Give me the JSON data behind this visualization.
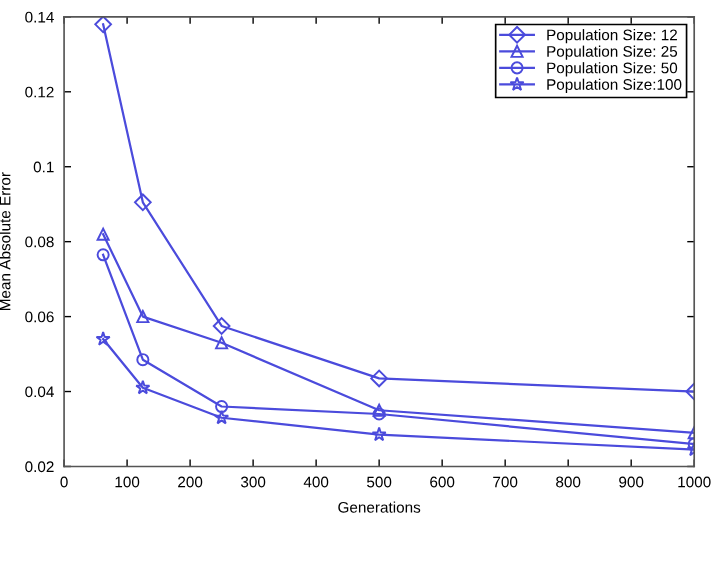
{
  "chart_data": {
    "type": "line",
    "xlabel": "Generations",
    "ylabel": "Mean Absolute Error",
    "xlim": [
      0,
      1000
    ],
    "xticks": [
      0,
      100,
      200,
      300,
      400,
      500,
      600,
      700,
      800,
      900,
      1000
    ],
    "ylim": [
      0.02,
      0.14
    ],
    "yticks": [
      0.02,
      0.04,
      0.06,
      0.08,
      {
        "value": 0.1,
        "label": "0.1"
      },
      0.12,
      0.14
    ],
    "grid": false,
    "legend": "top right",
    "series": [
      {
        "name": "Population Size: 12",
        "color": "#4b4bdc",
        "marker": "diamond",
        "x": [
          62,
          125,
          250,
          500,
          1000
        ],
        "values": [
          0.138,
          0.0905,
          0.0575,
          0.0435,
          0.04
        ]
      },
      {
        "name": "Population Size: 25",
        "color": "#4b4bdc",
        "marker": "triangle",
        "x": [
          62,
          125,
          250,
          500,
          1000
        ],
        "values": [
          0.082,
          0.06,
          0.053,
          0.035,
          0.029
        ]
      },
      {
        "name": "Population Size: 50",
        "color": "#4b4bdc",
        "marker": "circle",
        "x": [
          62,
          125,
          250,
          500,
          1000
        ],
        "values": [
          0.0765,
          0.0485,
          0.036,
          0.034,
          0.026
        ]
      },
      {
        "name": "Population Size:100",
        "color": "#4b4bdc",
        "marker": "star",
        "x": [
          62,
          125,
          250,
          500,
          1000
        ],
        "values": [
          0.054,
          0.041,
          0.033,
          0.0285,
          0.0245
        ]
      }
    ]
  }
}
